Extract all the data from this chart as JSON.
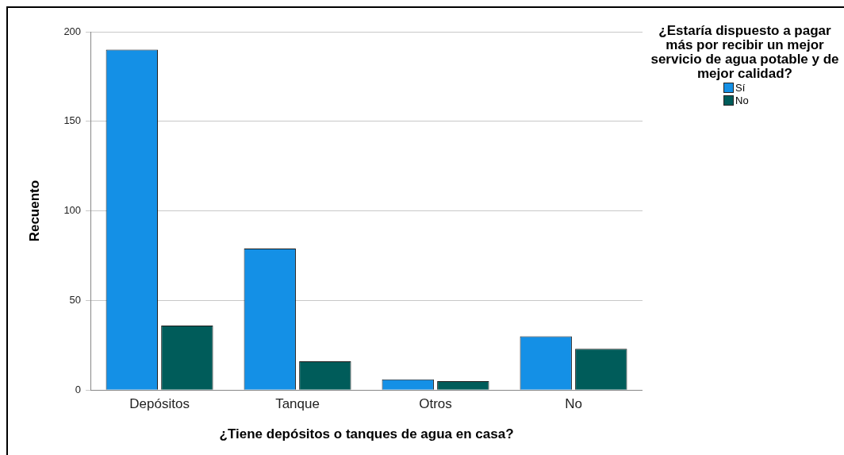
{
  "chart_data": {
    "type": "bar",
    "xlabel": "¿Tiene depósitos o tanques de agua en casa?",
    "ylabel": "Recuento",
    "legend_title": "¿Estaría dispuesto a pagar más por recibir un mejor servicio de agua potable y de mejor calidad?",
    "categories": [
      "Depósitos",
      "Tanque",
      "Otros",
      "No"
    ],
    "series": [
      {
        "name": "Sí",
        "color": "#1490e6",
        "values": [
          190,
          79,
          6,
          30
        ]
      },
      {
        "name": "No",
        "color": "#005c5a",
        "values": [
          36,
          16,
          5,
          23
        ]
      }
    ],
    "ylim": [
      0,
      200
    ],
    "yticks": [
      0,
      50,
      100,
      150,
      200
    ],
    "grid": "y",
    "legend": "right"
  }
}
